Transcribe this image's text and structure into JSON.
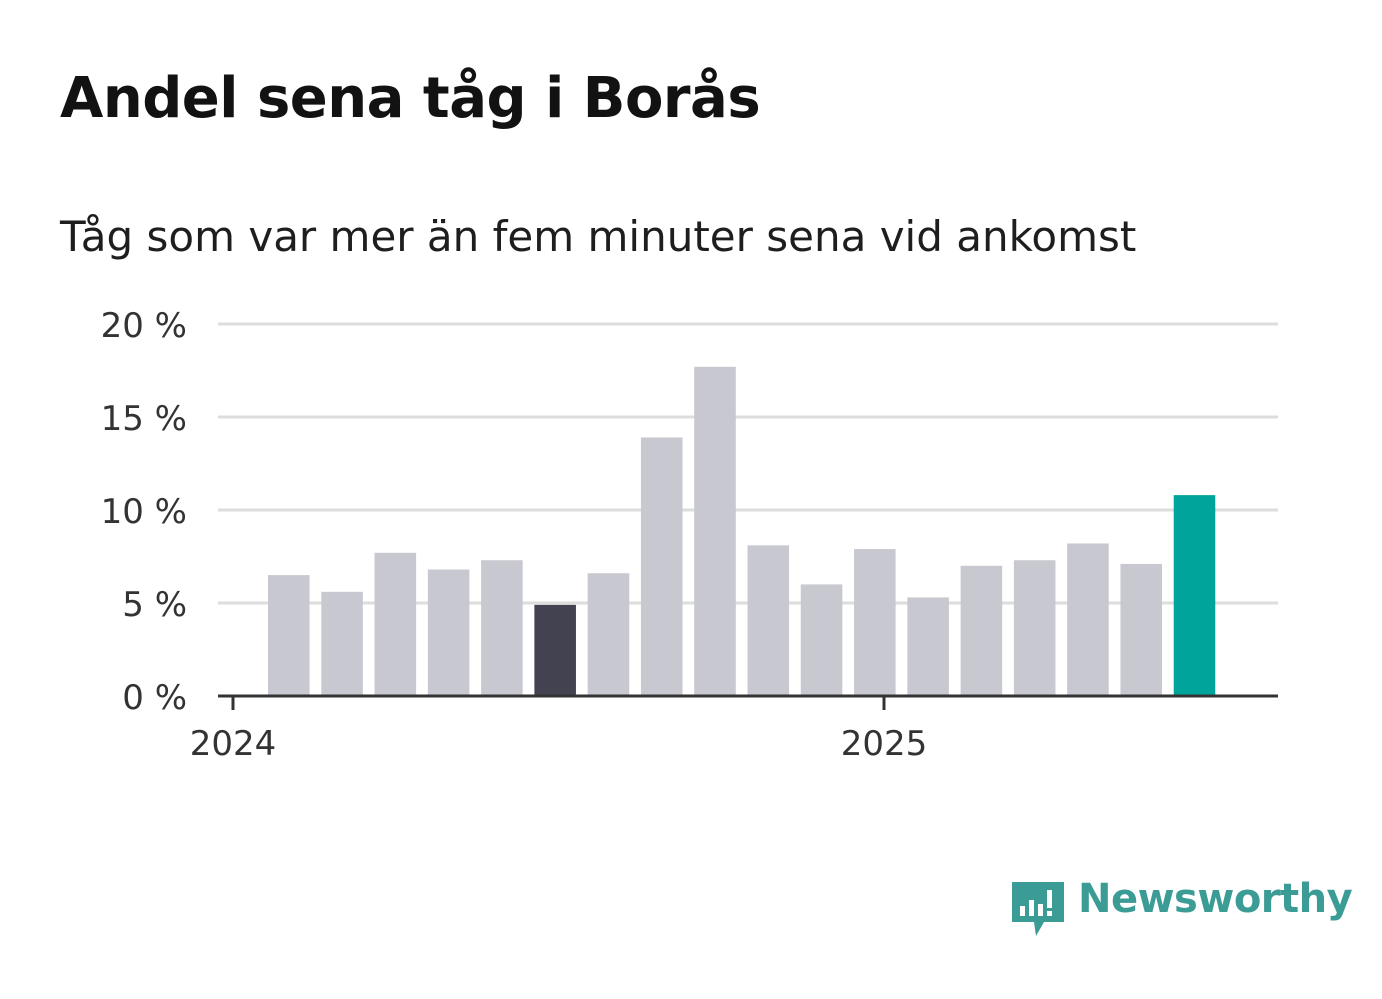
{
  "title": "Andel sena tåg i Borås",
  "subtitle": "Tåg som var mer än fem minuter sena vid ankomst",
  "brand": {
    "name": "Newsworthy",
    "icon": "newsworthy-logo-icon"
  },
  "colors": {
    "default_bar": "#c8c8d0",
    "highlight_past": "#434250",
    "highlight_current": "#00a49a",
    "grid": "#dddddd",
    "axis": "#333333"
  },
  "chart_data": {
    "type": "bar",
    "ylabel": "",
    "xlabel": "",
    "ylim": [
      0,
      20
    ],
    "yticks": [
      0,
      5,
      10,
      15,
      20
    ],
    "ytick_labels": [
      "0 %",
      "5 %",
      "10 %",
      "15 %",
      "20 %"
    ],
    "xtick_labels": [
      "2024",
      "2025"
    ],
    "grid": true,
    "categories": [
      "2024-01",
      "2024-02",
      "2024-03",
      "2024-04",
      "2024-05",
      "2024-06",
      "2024-07",
      "2024-08",
      "2024-09",
      "2024-10",
      "2024-11",
      "2024-12",
      "2025-01",
      "2025-02",
      "2025-03",
      "2025-04",
      "2025-05",
      "2025-06"
    ],
    "series": [
      {
        "values": [
          6.5,
          5.6,
          7.7,
          6.8,
          7.3,
          4.9,
          6.6,
          13.9,
          17.7,
          8.1,
          6.0,
          7.9,
          5.3,
          7.0,
          7.3,
          8.2,
          7.1,
          10.8
        ],
        "highlight": [
          "",
          "",
          "",
          "",
          "",
          "past",
          "",
          "",
          "",
          "",
          "",
          "",
          "",
          "",
          "",
          "",
          "",
          "current"
        ]
      }
    ]
  }
}
